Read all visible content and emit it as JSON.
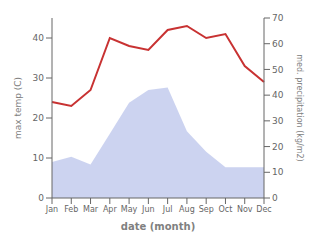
{
  "chart_data": {
    "type": "line",
    "xlabel": "date (month)",
    "ylabel": "max temp (C)",
    "y2label": "med. precipitation (kg/m2)",
    "categories": [
      "Jan",
      "Feb",
      "Mar",
      "Apr",
      "May",
      "Jun",
      "Jul",
      "Aug",
      "Sep",
      "Oct",
      "Nov",
      "Dec"
    ],
    "series": [
      {
        "type": "area",
        "axis": "y2",
        "color": "#b0bce8",
        "values": [
          14,
          16,
          13,
          25,
          37,
          42,
          43,
          26,
          18,
          12,
          12,
          12
        ]
      },
      {
        "type": "line",
        "color": "#c83232",
        "values": [
          24,
          23,
          27,
          40,
          38,
          37,
          42,
          43,
          40,
          41,
          33,
          29
        ]
      }
    ],
    "ylim": [
      0,
      45
    ],
    "yticks": [
      0,
      10,
      20,
      30,
      40
    ],
    "y2lim": [
      0,
      70
    ],
    "y2ticks": [
      0,
      10,
      20,
      30,
      40,
      50,
      60,
      70
    ],
    "grid": false
  }
}
